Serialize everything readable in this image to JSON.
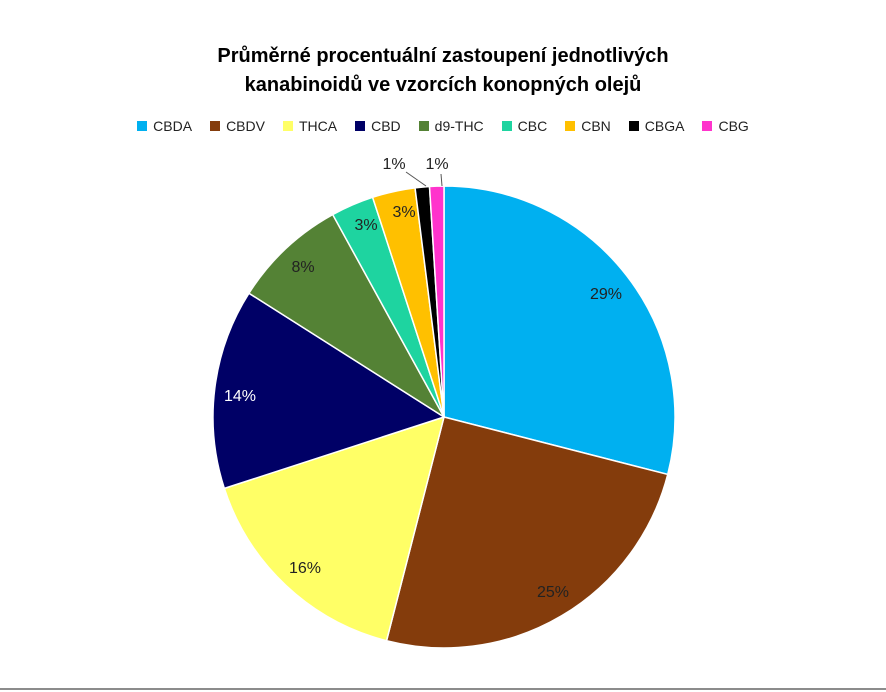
{
  "chart_data": {
    "type": "pie",
    "title_lines": [
      "Průměrné procentuální zastoupení jednotlivých",
      "kanabinoidů ve vzorcích konopných olejů"
    ],
    "legend_position": "top",
    "slices": [
      {
        "label": "CBDA",
        "value": 29,
        "display": "29%",
        "color": "#00B0F0"
      },
      {
        "label": "CBDV",
        "value": 25,
        "display": "25%",
        "color": "#843C0C"
      },
      {
        "label": "THCA",
        "value": 16,
        "display": "16%",
        "color": "#FFFF66"
      },
      {
        "label": "CBD",
        "value": 14,
        "display": "14%",
        "color": "#000066"
      },
      {
        "label": "d9-THC",
        "value": 8,
        "display": "8%",
        "color": "#548235"
      },
      {
        "label": "CBC",
        "value": 3,
        "display": "3%",
        "color": "#1ED4A0"
      },
      {
        "label": "CBN",
        "value": 3,
        "display": "3%",
        "color": "#FFC000"
      },
      {
        "label": "CBGA",
        "value": 1,
        "display": "1%",
        "color": "#000000"
      },
      {
        "label": "CBG",
        "value": 1,
        "display": "1%",
        "color": "#FF33CC"
      }
    ]
  }
}
